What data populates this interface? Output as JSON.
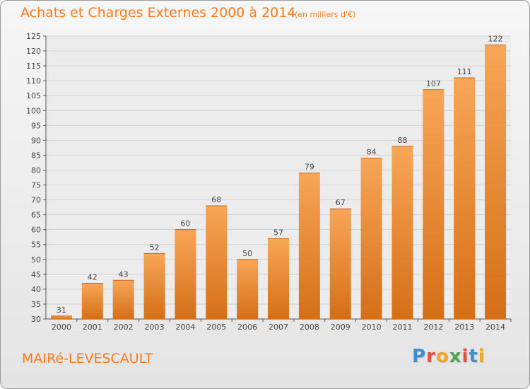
{
  "title": "Achats et Charges Externes 2000 à 2014",
  "unit_note": "(en milliers d'€)",
  "commune": "MAIRé-LEVESCAULT",
  "logo": {
    "text": "Proxiti",
    "letter_colors": [
      "#3a8fd6",
      "#e94e3c",
      "#f5a623",
      "#4aa84a",
      "#e94e3c",
      "#3a8fd6",
      "#f5a623"
    ]
  },
  "colors": {
    "accent": "#ff7a1a",
    "bar_light": "#f7a657",
    "bar_dark": "#d56f17"
  },
  "chart_data": {
    "type": "bar",
    "categories": [
      "2000",
      "2001",
      "2002",
      "2003",
      "2004",
      "2005",
      "2006",
      "2007",
      "2008",
      "2009",
      "2010",
      "2011",
      "2012",
      "2013",
      "2014"
    ],
    "values": [
      31,
      42,
      43,
      52,
      60,
      68,
      50,
      57,
      79,
      67,
      84,
      88,
      107,
      111,
      122
    ],
    "data_labels": [
      "31",
      "42",
      "43",
      "52",
      "60",
      "68",
      "50",
      "57",
      "79",
      "67",
      "84",
      "88",
      "107",
      "111",
      "122"
    ],
    "ylim": [
      30,
      125
    ],
    "yticks": [
      30,
      35,
      40,
      45,
      50,
      55,
      60,
      65,
      70,
      75,
      80,
      85,
      90,
      95,
      100,
      105,
      110,
      115,
      120,
      125
    ],
    "grid": true,
    "title": "Achats et Charges Externes 2000 à 2014",
    "xlabel": "",
    "ylabel": ""
  }
}
